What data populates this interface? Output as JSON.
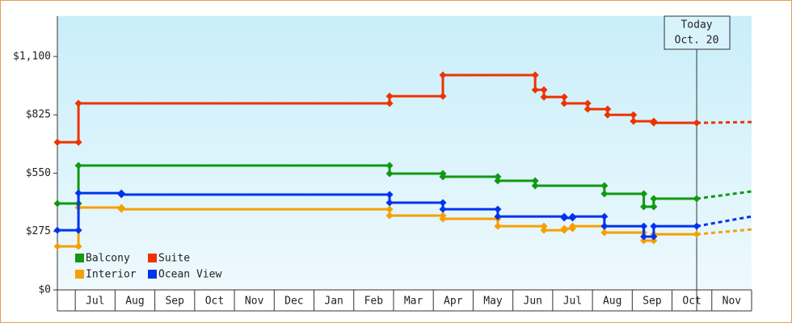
{
  "chart_data": {
    "type": "step",
    "ylim": [
      0,
      1290
    ],
    "yticks": [
      {
        "value": 0,
        "label": "$0"
      },
      {
        "value": 275,
        "label": "$275"
      },
      {
        "value": 550,
        "label": "$550"
      },
      {
        "value": 825,
        "label": "$825"
      },
      {
        "value": 1100,
        "label": "$1,100"
      }
    ],
    "xlim": [
      0.55,
      18
    ],
    "xticks": [
      {
        "value": 1.5,
        "label": "Jul"
      },
      {
        "value": 2.5,
        "label": "Aug"
      },
      {
        "value": 3.5,
        "label": "Sep"
      },
      {
        "value": 4.5,
        "label": "Oct"
      },
      {
        "value": 5.5,
        "label": "Nov"
      },
      {
        "value": 6.5,
        "label": "Dec"
      },
      {
        "value": 7.5,
        "label": "Jan"
      },
      {
        "value": 8.5,
        "label": "Feb"
      },
      {
        "value": 9.5,
        "label": "Mar"
      },
      {
        "value": 10.5,
        "label": "Apr"
      },
      {
        "value": 11.5,
        "label": "May"
      },
      {
        "value": 12.5,
        "label": "Jun"
      },
      {
        "value": 13.5,
        "label": "Jul"
      },
      {
        "value": 14.5,
        "label": "Aug"
      },
      {
        "value": 15.5,
        "label": "Sep"
      },
      {
        "value": 16.5,
        "label": "Oct"
      },
      {
        "value": 17.5,
        "label": "Nov"
      }
    ],
    "today": {
      "label": "Today",
      "date": "Oct. 20",
      "x": 16.62
    },
    "series": [
      {
        "name": "Balcony",
        "color": "#119911",
        "x": [
          0.55,
          1.08,
          8.9,
          10.24,
          11.62,
          12.56,
          14.3,
          15.29,
          15.54
        ],
        "values": [
          407,
          586,
          548,
          533,
          514,
          491,
          453,
          392,
          430
        ],
        "projection": 464
      },
      {
        "name": "Suite",
        "color": "#ee3300",
        "x": [
          0.55,
          1.08,
          8.9,
          10.24,
          12.56,
          12.78,
          13.29,
          13.88,
          14.38,
          15.03,
          15.54
        ],
        "values": [
          696,
          879,
          913,
          1012,
          943,
          909,
          879,
          852,
          825,
          795,
          787
        ],
        "projection": 791
      },
      {
        "name": "Interior",
        "color": "#f5a000",
        "x": [
          0.55,
          1.08,
          2.16,
          8.9,
          10.24,
          11.62,
          12.78,
          13.29,
          13.5,
          14.3,
          15.29,
          15.54
        ],
        "values": [
          205,
          388,
          380,
          350,
          335,
          300,
          281,
          289,
          300,
          270,
          232,
          262
        ],
        "projection": 285
      },
      {
        "name": "Ocean View",
        "color": "#0033ee",
        "x": [
          0.55,
          1.08,
          2.16,
          8.9,
          10.24,
          11.62,
          13.29,
          13.5,
          14.3,
          15.29,
          15.54
        ],
        "values": [
          281,
          456,
          449,
          411,
          380,
          346,
          339,
          346,
          300,
          251,
          300
        ],
        "projection": 346
      }
    ]
  }
}
